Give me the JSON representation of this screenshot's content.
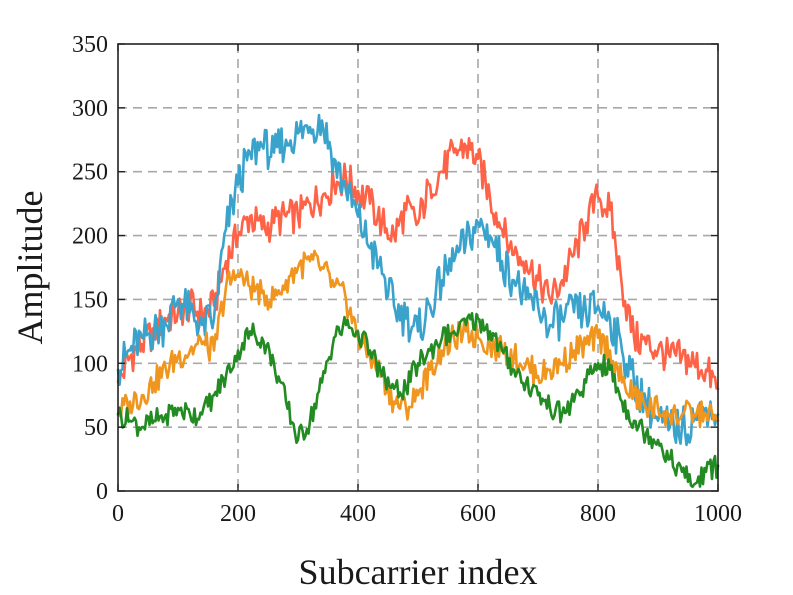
{
  "chart_data": {
    "type": "line",
    "title": "",
    "xlabel": "Subcarrier index",
    "ylabel": "Amplitude",
    "xlim": [
      0,
      1000
    ],
    "ylim": [
      0,
      350
    ],
    "xticks": [
      0,
      200,
      400,
      600,
      800,
      1000
    ],
    "yticks": [
      0,
      50,
      100,
      150,
      200,
      250,
      300,
      350
    ],
    "grid": true,
    "legend": "none",
    "series": [
      {
        "color": "#ff6347",
        "x": [
          0,
          20,
          40,
          60,
          80,
          100,
          120,
          140,
          160,
          180,
          200,
          220,
          240,
          260,
          280,
          300,
          320,
          340,
          360,
          380,
          400,
          420,
          440,
          460,
          480,
          500,
          520,
          540,
          560,
          580,
          600,
          620,
          640,
          660,
          680,
          700,
          720,
          740,
          760,
          780,
          800,
          820,
          840,
          860,
          880,
          900,
          920,
          940,
          960,
          980,
          1000
        ],
        "y": [
          85,
          105,
          115,
          125,
          135,
          140,
          145,
          138,
          145,
          180,
          200,
          215,
          205,
          210,
          215,
          215,
          225,
          230,
          240,
          245,
          235,
          225,
          210,
          200,
          220,
          210,
          240,
          250,
          265,
          270,
          260,
          230,
          205,
          185,
          180,
          165,
          150,
          165,
          185,
          210,
          230,
          220,
          160,
          120,
          115,
          110,
          105,
          105,
          100,
          95,
          80
        ]
      },
      {
        "color": "#3aa3cc",
        "x": [
          0,
          20,
          40,
          60,
          80,
          100,
          120,
          140,
          160,
          180,
          200,
          220,
          240,
          260,
          280,
          300,
          320,
          340,
          360,
          380,
          400,
          420,
          440,
          460,
          480,
          500,
          520,
          540,
          560,
          580,
          600,
          620,
          640,
          660,
          680,
          700,
          720,
          740,
          760,
          780,
          800,
          820,
          840,
          860,
          880,
          900,
          920,
          940,
          960,
          980,
          1000
        ],
        "y": [
          95,
          110,
          120,
          125,
          130,
          150,
          140,
          130,
          135,
          205,
          240,
          265,
          270,
          265,
          275,
          280,
          285,
          290,
          260,
          235,
          215,
          190,
          170,
          145,
          135,
          125,
          145,
          165,
          180,
          195,
          210,
          200,
          180,
          165,
          150,
          145,
          130,
          135,
          140,
          140,
          145,
          135,
          110,
          85,
          70,
          55,
          50,
          50,
          55,
          65,
          60
        ]
      },
      {
        "color": "#f0951e",
        "x": [
          0,
          20,
          40,
          60,
          80,
          100,
          120,
          140,
          160,
          180,
          200,
          220,
          240,
          260,
          280,
          300,
          320,
          340,
          360,
          380,
          400,
          420,
          440,
          460,
          480,
          500,
          520,
          540,
          560,
          580,
          600,
          620,
          640,
          660,
          680,
          700,
          720,
          740,
          760,
          780,
          800,
          820,
          840,
          860,
          880,
          900,
          920,
          940,
          960,
          980,
          1000
        ],
        "y": [
          60,
          70,
          75,
          85,
          95,
          105,
          110,
          115,
          110,
          160,
          170,
          160,
          155,
          150,
          165,
          175,
          180,
          175,
          160,
          150,
          120,
          105,
          90,
          70,
          65,
          75,
          95,
          110,
          120,
          125,
          120,
          115,
          110,
          105,
          100,
          90,
          95,
          100,
          110,
          115,
          120,
          110,
          85,
          75,
          65,
          65,
          60,
          60,
          60,
          60,
          55
        ]
      },
      {
        "color": "#228b22",
        "x": [
          0,
          20,
          40,
          60,
          80,
          100,
          120,
          140,
          160,
          180,
          200,
          220,
          240,
          260,
          280,
          300,
          320,
          340,
          360,
          380,
          400,
          420,
          440,
          460,
          480,
          500,
          520,
          540,
          560,
          580,
          600,
          620,
          640,
          660,
          680,
          700,
          720,
          740,
          760,
          780,
          800,
          820,
          840,
          860,
          880,
          900,
          920,
          940,
          960,
          980,
          1000
        ],
        "y": [
          60,
          55,
          50,
          55,
          60,
          65,
          60,
          60,
          75,
          90,
          110,
          125,
          120,
          100,
          70,
          40,
          55,
          85,
          120,
          130,
          125,
          110,
          90,
          80,
          80,
          100,
          110,
          120,
          125,
          130,
          135,
          125,
          110,
          95,
          85,
          75,
          65,
          60,
          70,
          85,
          100,
          95,
          70,
          55,
          45,
          40,
          25,
          15,
          5,
          15,
          20
        ]
      }
    ]
  }
}
